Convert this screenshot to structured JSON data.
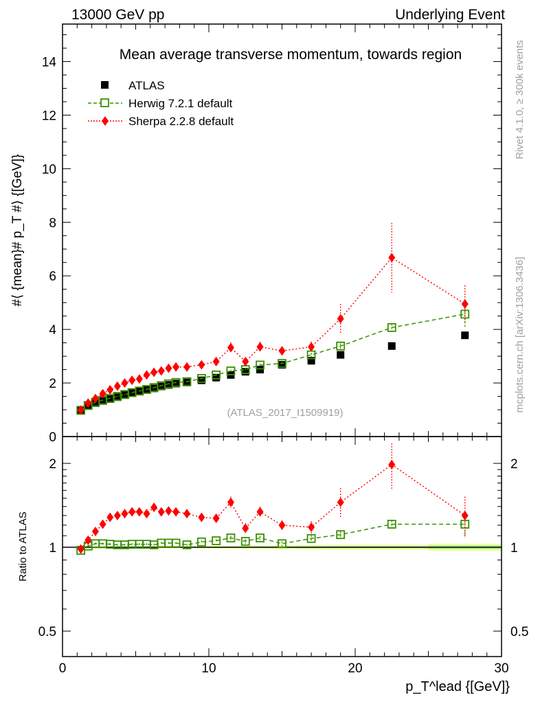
{
  "header": {
    "left": "13000 GeV pp",
    "right": "Underlying Event"
  },
  "side_labels": {
    "rivet": "Rivet 4.1.0, ≥ 300k events",
    "mcplots": "mcplots.cern.ch [arXiv:1306.3436]"
  },
  "watermark": "(ATLAS_2017_I1509919)",
  "colors": {
    "atlas": "#000000",
    "herwig": "#3a8f00",
    "sherpa": "#ff0000",
    "band_outer": "#ffff99",
    "band_inner": "#99ee99"
  },
  "chart_data": [
    {
      "type": "scatter",
      "title": "Mean average transverse momentum, towards region",
      "xlabel": "p_T^lead {[GeV]}",
      "ylabel": "#⟨ {mean}# p_T #⟩ {[GeV]}",
      "xlim": [
        0,
        30
      ],
      "ylim": [
        0,
        15.4
      ],
      "xticks": [
        "0",
        "10",
        "20",
        "30"
      ],
      "yticks": [
        "0",
        "2",
        "4",
        "6",
        "8",
        "10",
        "12",
        "14"
      ],
      "legend_position": "top-left",
      "x": [
        1.25,
        1.75,
        2.25,
        2.75,
        3.25,
        3.75,
        4.25,
        4.75,
        5.25,
        5.75,
        6.25,
        6.75,
        7.25,
        7.75,
        8.5,
        9.5,
        10.5,
        11.5,
        12.5,
        13.5,
        15,
        17,
        19,
        22.5,
        27.5
      ],
      "series": [
        {
          "name": "ATLAS",
          "marker": "square-filled",
          "values": [
            1.0,
            1.15,
            1.25,
            1.33,
            1.4,
            1.47,
            1.55,
            1.62,
            1.68,
            1.74,
            1.8,
            1.87,
            1.93,
            1.98,
            2.02,
            2.1,
            2.2,
            2.3,
            2.42,
            2.5,
            2.68,
            2.83,
            3.05,
            3.38,
            3.78
          ]
        },
        {
          "name": "Herwig 7.2.1 default",
          "marker": "square-open",
          "values": [
            0.98,
            1.16,
            1.28,
            1.36,
            1.43,
            1.5,
            1.57,
            1.64,
            1.7,
            1.76,
            1.83,
            1.9,
            1.97,
            2.02,
            2.05,
            2.17,
            2.3,
            2.45,
            2.5,
            2.67,
            2.73,
            3.05,
            3.38,
            4.07,
            4.57
          ],
          "errors": [
            0.02,
            0.02,
            0.02,
            0.02,
            0.02,
            0.02,
            0.02,
            0.02,
            0.02,
            0.02,
            0.02,
            0.02,
            0.02,
            0.03,
            0.03,
            0.03,
            0.04,
            0.05,
            0.05,
            0.06,
            0.06,
            0.08,
            0.1,
            0.15,
            0.5
          ]
        },
        {
          "name": "Sherpa 2.2.8 default",
          "marker": "diamond",
          "values": [
            0.99,
            1.25,
            1.42,
            1.6,
            1.75,
            1.88,
            2.0,
            2.1,
            2.15,
            2.3,
            2.4,
            2.45,
            2.55,
            2.6,
            2.6,
            2.68,
            2.8,
            3.32,
            2.8,
            3.35,
            3.2,
            3.35,
            4.4,
            6.68,
            4.95
          ],
          "errors": [
            0.03,
            0.03,
            0.03,
            0.03,
            0.03,
            0.04,
            0.04,
            0.04,
            0.05,
            0.05,
            0.05,
            0.06,
            0.06,
            0.07,
            0.08,
            0.09,
            0.1,
            0.2,
            0.15,
            0.2,
            0.15,
            0.2,
            0.55,
            1.3,
            0.7
          ]
        }
      ]
    },
    {
      "type": "scatter",
      "ylabel": "Ratio to ATLAS",
      "yscale": "log",
      "ylim": [
        0.44,
        2.3
      ],
      "yticks": [
        "0.5",
        "1",
        "2"
      ],
      "band_x_edges": [
        1,
        2,
        3,
        4,
        5,
        6,
        7,
        8,
        9,
        10,
        11,
        12,
        13,
        14,
        16,
        18,
        20,
        25,
        30
      ],
      "band_halfwidth": [
        0.01,
        0.01,
        0.01,
        0.01,
        0.01,
        0.01,
        0.01,
        0.01,
        0.01,
        0.012,
        0.012,
        0.014,
        0.014,
        0.015,
        0.018,
        0.02,
        0.02,
        0.03
      ],
      "series": [
        {
          "name": "Herwig 7.2.1 default",
          "values": [
            0.975,
            1.01,
            1.03,
            1.03,
            1.025,
            1.02,
            1.02,
            1.025,
            1.025,
            1.025,
            1.02,
            1.035,
            1.035,
            1.035,
            1.02,
            1.045,
            1.055,
            1.08,
            1.05,
            1.08,
            1.03,
            1.075,
            1.11,
            1.21,
            1.21
          ],
          "errors": [
            0.01,
            0.01,
            0.01,
            0.01,
            0.01,
            0.01,
            0.01,
            0.01,
            0.01,
            0.01,
            0.01,
            0.01,
            0.01,
            0.01,
            0.01,
            0.015,
            0.015,
            0.02,
            0.02,
            0.02,
            0.02,
            0.03,
            0.03,
            0.04,
            0.12
          ]
        },
        {
          "name": "Sherpa 2.2.8 default",
          "values": [
            0.985,
            1.06,
            1.14,
            1.21,
            1.28,
            1.3,
            1.32,
            1.34,
            1.34,
            1.32,
            1.39,
            1.34,
            1.35,
            1.34,
            1.32,
            1.28,
            1.27,
            1.45,
            1.17,
            1.34,
            1.2,
            1.18,
            1.45,
            1.98,
            1.3
          ],
          "errors": [
            0.02,
            0.02,
            0.02,
            0.02,
            0.02,
            0.02,
            0.02,
            0.02,
            0.02,
            0.02,
            0.02,
            0.02,
            0.02,
            0.02,
            0.02,
            0.03,
            0.04,
            0.07,
            0.05,
            0.06,
            0.05,
            0.06,
            0.18,
            0.38,
            0.22
          ]
        }
      ]
    }
  ]
}
